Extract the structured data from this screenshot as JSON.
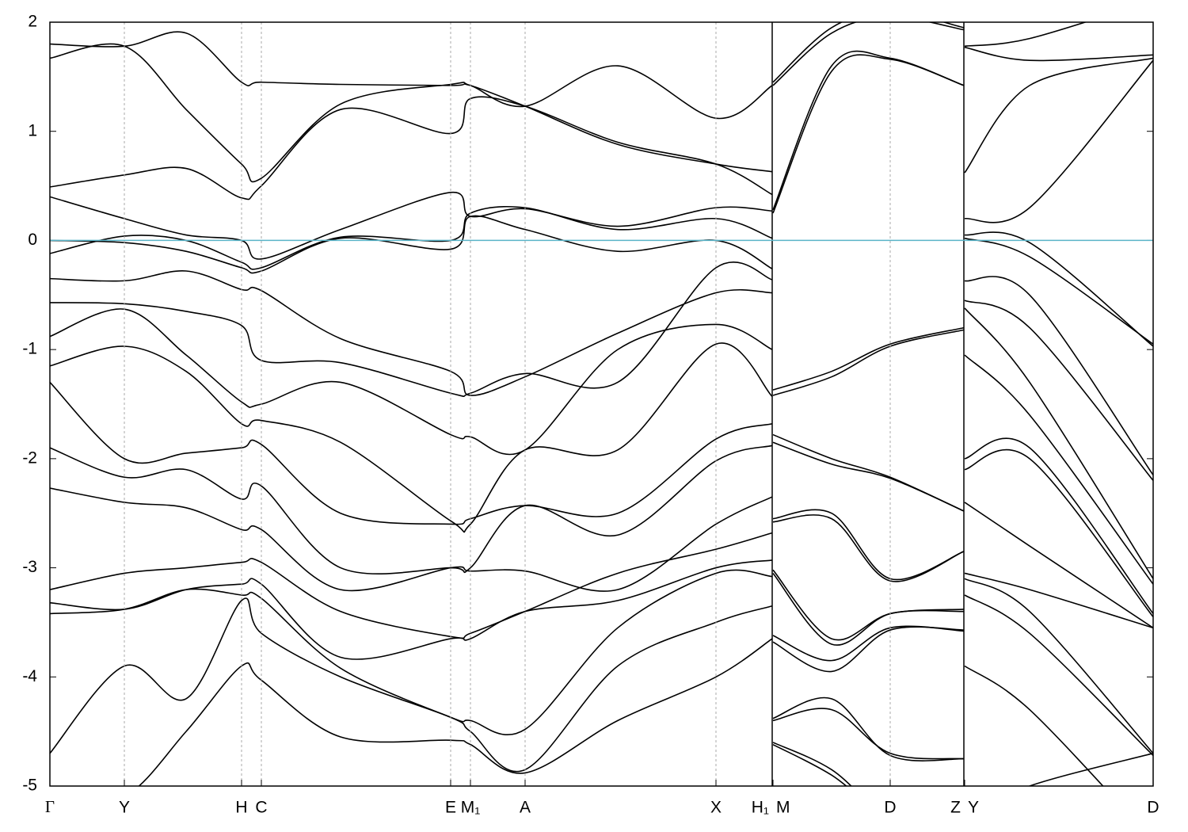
{
  "chart_data": {
    "type": "line",
    "x": [
      0,
      94,
      172,
      242,
      267,
      367,
      506,
      531,
      600,
      717,
      841,
      912,
      913,
      987,
      1061,
      1154,
      1155,
      1237,
      1393
    ],
    "xlim": [
      0,
      1393
    ],
    "xticks": [
      {
        "value": 0,
        "label": "Γ"
      },
      {
        "value": 94,
        "label": "Y"
      },
      {
        "value": 242,
        "label": "H"
      },
      {
        "value": 267,
        "label": "C"
      },
      {
        "value": 506,
        "label": "E"
      },
      {
        "value": 531,
        "label": "M₁"
      },
      {
        "value": 600,
        "label": "A"
      },
      {
        "value": 841,
        "label": "X"
      },
      {
        "value": 912,
        "label": "H₁"
      },
      {
        "value": 913,
        "label": "M"
      },
      {
        "value": 1061,
        "label": "D"
      },
      {
        "value": 1154,
        "label": "Z"
      },
      {
        "value": 1155,
        "label": "Y"
      },
      {
        "value": 1393,
        "label": "D"
      }
    ],
    "ylim": [
      -5,
      2
    ],
    "yticks": [
      -5,
      -4,
      -3,
      -2,
      -1,
      0,
      1,
      2
    ],
    "reference_line": 0,
    "reference_color": "#5ab4c8",
    "grid": true,
    "series": [
      {
        "color": "#000000",
        "values": [
          1.8,
          1.78,
          1.9,
          1.45,
          1.45,
          1.43,
          1.42,
          1.42,
          1.23,
          1.6,
          1.12,
          1.42,
          1.45,
          1.95,
          2.1,
          1.95,
          1.78,
          1.85,
          2.2
        ]
      },
      {
        "color": "#000000",
        "values": [
          1.67,
          1.78,
          1.2,
          0.7,
          0.57,
          1.25,
          1.43,
          1.42,
          1.23,
          0.88,
          0.7,
          0.63,
          1.42,
          1.9,
          2.05,
          1.93,
          1.77,
          1.65,
          1.7
        ]
      },
      {
        "color": "#000000",
        "values": [
          0.49,
          0.6,
          0.66,
          0.39,
          0.5,
          1.2,
          0.98,
          1.3,
          1.23,
          0.9,
          0.7,
          0.42,
          0.28,
          1.6,
          1.67,
          1.42,
          0.62,
          1.42,
          1.67
        ]
      },
      {
        "color": "#000000",
        "values": [
          0.4,
          0.2,
          0.05,
          0.0,
          -0.17,
          0.1,
          0.44,
          0.22,
          0.29,
          0.13,
          0.3,
          0.27,
          0.25,
          1.55,
          1.66,
          1.42,
          0.2,
          0.3,
          1.65
        ]
      },
      {
        "color": "#000000",
        "values": [
          -0.12,
          0.04,
          0.0,
          -0.2,
          -0.25,
          0.03,
          0.0,
          0.25,
          0.3,
          0.1,
          0.2,
          0.02,
          -1.37,
          -1.2,
          -0.95,
          -0.8,
          0.05,
          -0.02,
          -0.97
        ]
      },
      {
        "color": "#000000",
        "values": [
          0.0,
          -0.02,
          -0.1,
          -0.25,
          -0.28,
          0.02,
          -0.08,
          0.22,
          0.1,
          -0.1,
          0.0,
          -0.26,
          -1.42,
          -1.25,
          -0.97,
          -0.82,
          0.02,
          -0.15,
          -0.95
        ]
      },
      {
        "color": "#000000",
        "values": [
          -0.35,
          -0.37,
          -0.28,
          -0.45,
          -0.46,
          -0.9,
          -1.2,
          -1.42,
          -1.25,
          -0.85,
          -0.48,
          -0.48,
          -1.78,
          -2.0,
          -2.17,
          -2.48,
          -0.37,
          -0.5,
          -2.15
        ]
      },
      {
        "color": "#000000",
        "values": [
          -0.57,
          -0.58,
          -0.65,
          -0.78,
          -1.1,
          -1.12,
          -1.4,
          -1.4,
          -1.22,
          -1.3,
          -0.25,
          -0.36,
          -1.85,
          -2.05,
          -2.18,
          -2.48,
          -0.55,
          -0.8,
          -2.2
        ]
      },
      {
        "color": "#000000",
        "values": [
          -0.88,
          -0.63,
          -1.05,
          -1.48,
          -1.5,
          -1.3,
          -1.78,
          -1.8,
          -1.92,
          -1.0,
          -0.77,
          -1.0,
          -2.55,
          -2.5,
          -3.1,
          -2.85,
          -0.62,
          -1.3,
          -3.1
        ]
      },
      {
        "color": "#000000",
        "values": [
          -1.15,
          -0.97,
          -1.2,
          -1.68,
          -1.65,
          -1.85,
          -2.57,
          -2.6,
          -1.92,
          -1.92,
          -0.95,
          -1.43,
          -2.58,
          -2.55,
          -3.12,
          -2.85,
          -1.05,
          -1.6,
          -3.15
        ]
      },
      {
        "color": "#000000",
        "values": [
          -1.3,
          -2.0,
          -1.95,
          -1.9,
          -1.87,
          -2.5,
          -2.6,
          -2.55,
          -2.43,
          -2.5,
          -1.82,
          -1.68,
          -3.02,
          -3.65,
          -3.42,
          -3.38,
          -2.0,
          -1.9,
          -3.42
        ]
      },
      {
        "color": "#000000",
        "values": [
          -1.9,
          -2.17,
          -2.1,
          -2.37,
          -2.25,
          -3.0,
          -3.0,
          -3.0,
          -2.43,
          -2.7,
          -2.02,
          -1.88,
          -3.05,
          -3.7,
          -3.42,
          -3.4,
          -2.1,
          -2.0,
          -3.45
        ]
      },
      {
        "color": "#000000",
        "values": [
          -2.27,
          -2.4,
          -2.45,
          -2.65,
          -2.65,
          -3.2,
          -3.0,
          -3.03,
          -3.03,
          -3.2,
          -2.6,
          -2.35,
          -3.62,
          -3.85,
          -3.55,
          -3.58,
          -2.4,
          -2.8,
          -3.55
        ]
      },
      {
        "color": "#000000",
        "values": [
          -3.2,
          -3.05,
          -3.0,
          -2.95,
          -2.95,
          -3.4,
          -3.63,
          -3.6,
          -3.4,
          -3.05,
          -2.83,
          -2.68,
          -3.68,
          -3.95,
          -3.57,
          -3.57,
          -3.05,
          -3.2,
          -3.55
        ]
      },
      {
        "color": "#000000",
        "values": [
          -3.32,
          -3.38,
          -3.2,
          -3.15,
          -3.15,
          -3.82,
          -3.65,
          -3.65,
          -3.4,
          -3.3,
          -3.0,
          -2.93,
          -4.38,
          -4.2,
          -4.72,
          -4.75,
          -3.1,
          -3.4,
          -4.7
        ]
      },
      {
        "color": "#000000",
        "values": [
          -3.42,
          -3.38,
          -3.2,
          -3.25,
          -3.28,
          -3.92,
          -4.37,
          -4.4,
          -4.48,
          -3.55,
          -3.05,
          -3.08,
          -4.6,
          -4.85,
          -5.3,
          -5.5,
          -3.25,
          -3.6,
          -4.72
        ]
      },
      {
        "color": "#000000",
        "values": [
          -4.7,
          -3.9,
          -4.2,
          -3.3,
          -3.6,
          -4.0,
          -4.37,
          -4.5,
          -4.85,
          -3.9,
          -3.5,
          -3.35,
          -4.62,
          -4.9,
          -5.3,
          -5.5,
          -3.9,
          -4.3,
          -5.5
        ]
      },
      {
        "color": "#000000",
        "values": [
          -5.2,
          -5.1,
          -4.5,
          -3.9,
          -4.03,
          -4.55,
          -4.58,
          -4.62,
          -4.88,
          -4.4,
          -4.0,
          -3.65,
          -4.4,
          -4.3,
          -4.7,
          -4.75,
          -5.3,
          -5.0,
          -4.7
        ]
      }
    ]
  }
}
